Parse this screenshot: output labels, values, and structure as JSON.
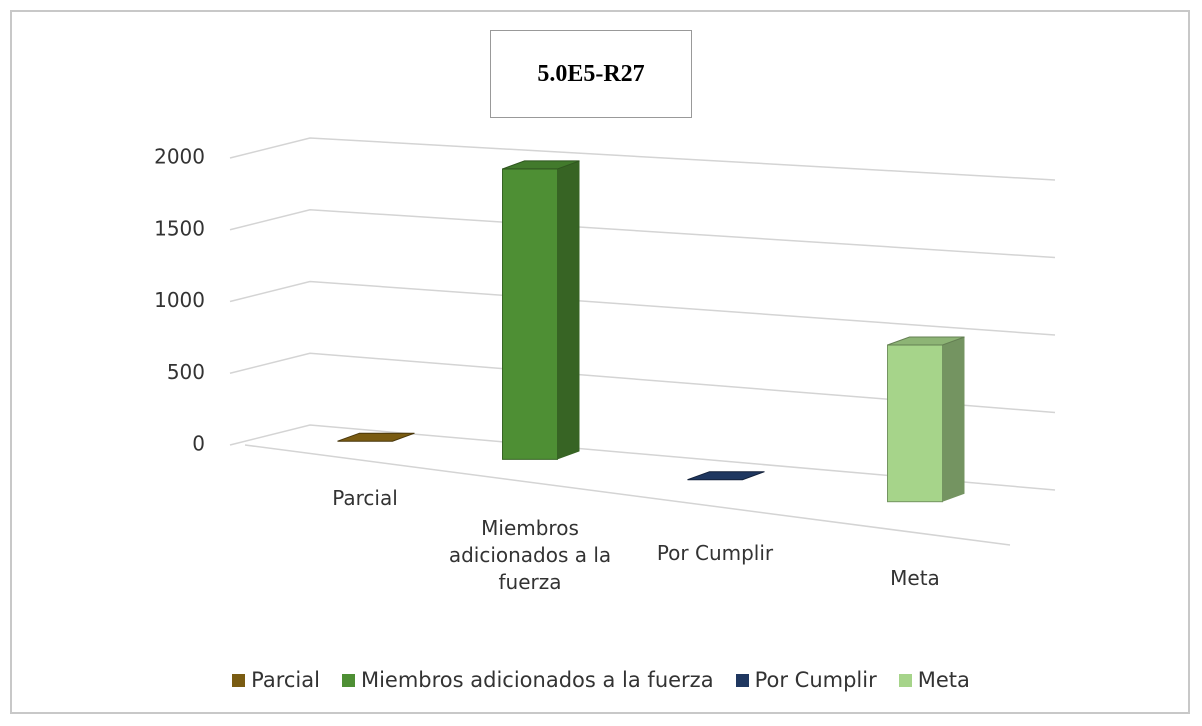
{
  "chart_data": {
    "type": "bar3d",
    "title": "5.0E5-R27",
    "categories": [
      "Parcial",
      "Miembros adicionados a la fuerza",
      "Por Cumplir",
      "Meta"
    ],
    "series": [
      {
        "name": "Parcial",
        "color": "#7a5c12",
        "values": [
          0,
          null,
          null,
          null
        ]
      },
      {
        "name": "Miembros adicionados a la fuerza",
        "color": "#4e8f34",
        "values": [
          null,
          1900,
          null,
          null
        ]
      },
      {
        "name": "Por Cumplir",
        "color": "#1f3760",
        "values": [
          null,
          null,
          0,
          null
        ]
      },
      {
        "name": "Meta",
        "color": "#a6d48a",
        "values": [
          null,
          null,
          null,
          1000
        ]
      }
    ],
    "ylim": [
      0,
      2000
    ],
    "yticks": [
      0,
      500,
      1000,
      1500,
      2000
    ],
    "grid": true,
    "legend": "bottom"
  }
}
